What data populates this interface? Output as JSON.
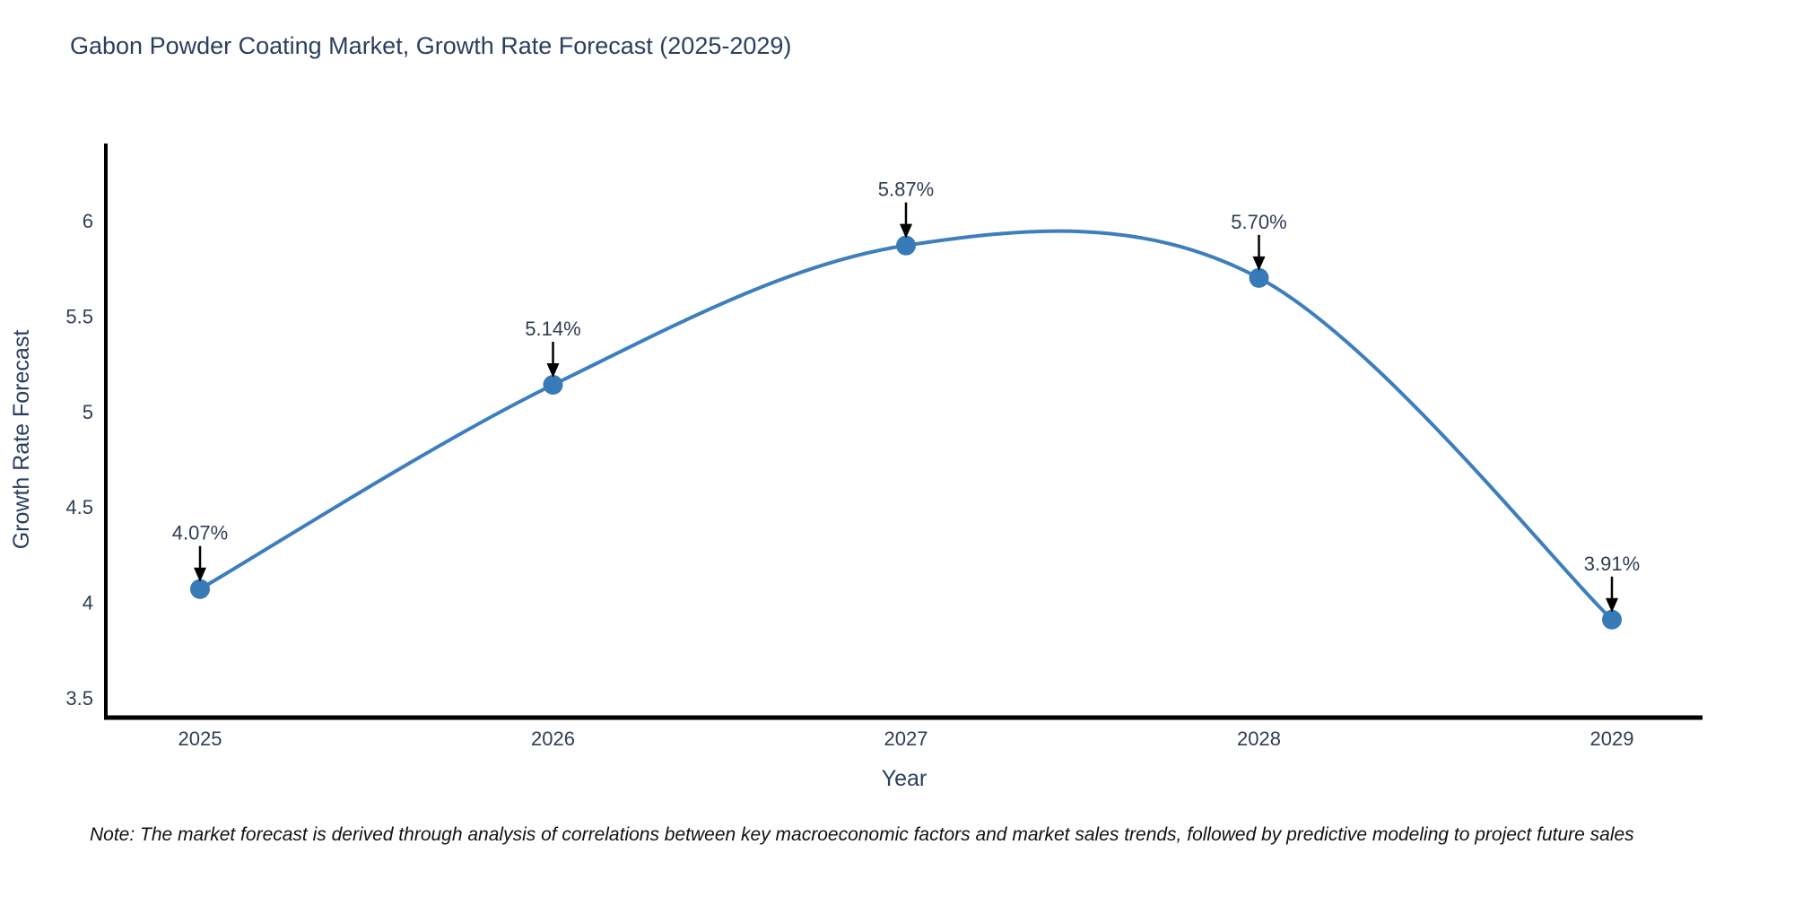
{
  "chart_data": {
    "type": "line",
    "line_shape": "spline",
    "title": "Gabon Powder Coating Market, Growth Rate Forecast (2025-2029)",
    "xlabel": "Year",
    "ylabel": "Growth Rate Forecast",
    "categories": [
      2025,
      2026,
      2027,
      2028,
      2029
    ],
    "values": [
      4.07,
      5.14,
      5.87,
      5.7,
      3.91
    ],
    "point_labels": [
      "4.07%",
      "5.14%",
      "5.87%",
      "5.70%",
      "3.91%"
    ],
    "x_tick_labels": [
      "2025",
      "2026",
      "2027",
      "2028",
      "2029"
    ],
    "y_tick_labels": [
      "3.5",
      "4",
      "4.5",
      "5",
      "5.5",
      "6"
    ],
    "y_ticks": [
      3.5,
      4,
      4.5,
      5,
      5.5,
      6
    ],
    "ylim": [
      3.4,
      6.4
    ],
    "grid": false,
    "legend": false,
    "colors": {
      "line": "#3d7ebd",
      "marker": "#3879b8",
      "axis": "#000000",
      "tick_label": "#2f3d53",
      "axis_title": "#2a3f5f",
      "annotation_text": "#2f3d53",
      "annotation_arrow": "#000000",
      "title": "#2a3f5f",
      "background": "#ffffff"
    }
  },
  "note": {
    "text": "Note: The market forecast is derived through analysis of correlations between key macroeconomic factors and market sales trends, followed by predictive modeling to project future sales"
  }
}
